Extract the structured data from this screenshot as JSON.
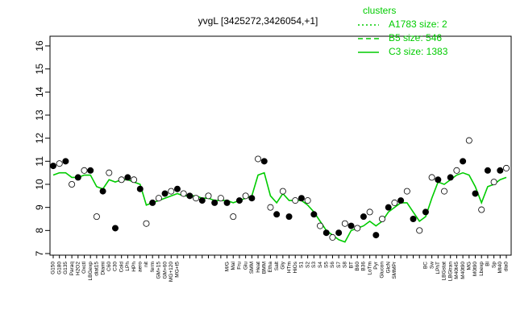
{
  "chart_data": {
    "type": "line",
    "title": "yvgL [3425272,3426054,+1]",
    "categories": [
      "G150",
      "G180",
      "G135",
      "Paraq",
      "H2O2",
      "Oxctl",
      "LBGexp",
      "diat15",
      "Diami",
      "C60",
      "C30",
      "Cold",
      "LPh",
      "HPh",
      "aero",
      "nit",
      "ferm",
      "GM+15",
      "GM+60",
      "MG+120",
      "MG+t5",
      null,
      null,
      null,
      null,
      null,
      null,
      null,
      "M/G",
      "Mal",
      "Fru",
      "Glu",
      "SMM",
      "Heat",
      "BMM",
      "Etha",
      "Salt",
      "Gly",
      "HTm",
      "HiOs",
      "S1",
      "S2",
      "S3",
      "S4",
      "S5",
      "S6",
      "S7",
      "S8",
      "BT",
      "B60",
      "B36",
      "LoTm",
      "Pyr",
      "Glucon",
      "GlcN",
      "SMMPr",
      null,
      null,
      null,
      null,
      "BC",
      "Sw",
      "LPhT",
      "LBGstat",
      "LBGtran",
      "M40t45",
      "M40t90",
      "MG",
      "M0t90",
      "Lbexp",
      "Bl",
      "Sp",
      "Mt40",
      "dia0"
    ],
    "points": [
      10.8,
      10.9,
      11.0,
      10.0,
      10.3,
      10.6,
      10.6,
      8.6,
      9.7,
      10.5,
      8.1,
      10.2,
      10.3,
      10.2,
      9.8,
      8.3,
      9.2,
      9.4,
      9.6,
      9.7,
      9.8,
      9.6,
      9.5,
      9.4,
      9.3,
      9.5,
      9.2,
      9.4,
      9.2,
      8.6,
      9.3,
      9.5,
      9.4,
      11.1,
      11.0,
      9.0,
      8.7,
      9.7,
      8.6,
      9.3,
      9.4,
      9.3,
      8.7,
      8.2,
      7.9,
      7.7,
      7.9,
      8.3,
      8.2,
      8.1,
      8.6,
      8.8,
      7.8,
      8.5,
      9.0,
      9.2,
      9.3,
      9.7,
      8.5,
      8.0,
      8.8,
      10.3,
      10.2,
      9.7,
      10.3,
      10.6,
      11.0,
      11.9,
      9.6,
      8.9,
      10.6,
      10.1,
      10.6,
      10.7
    ],
    "series": [
      {
        "name": "C3 size: 1383",
        "color": "#00cc00",
        "values": [
          10.4,
          10.5,
          10.5,
          10.3,
          10.3,
          10.4,
          10.4,
          9.9,
          9.8,
          10.2,
          10.1,
          10.2,
          10.2,
          10.1,
          10.0,
          9.1,
          9.2,
          9.3,
          9.4,
          9.5,
          9.6,
          9.5,
          9.5,
          9.5,
          9.4,
          9.4,
          9.3,
          9.3,
          9.3,
          9.2,
          9.3,
          9.4,
          9.5,
          10.4,
          10.5,
          9.5,
          9.2,
          9.6,
          9.3,
          9.3,
          9.3,
          9.1,
          8.8,
          8.4,
          8.0,
          7.8,
          7.6,
          7.5,
          8.0,
          8.1,
          8.2,
          8.4,
          8.2,
          8.4,
          8.8,
          9.0,
          9.2,
          9.2,
          8.8,
          8.4,
          8.6,
          9.4,
          10.1,
          10.0,
          10.2,
          10.4,
          10.5,
          10.4,
          9.9,
          9.2,
          9.9,
          10.0,
          10.2,
          10.3
        ]
      }
    ],
    "legend": {
      "title": "clusters",
      "entries": [
        {
          "label": "A1783 size: 2",
          "dash": "2,3"
        },
        {
          "label": "B5 size: 546",
          "dash": "6,4"
        },
        {
          "label": "C3 size: 1383",
          "dash": "none"
        }
      ]
    },
    "ylim": [
      7,
      16
    ],
    "yticks": [
      7,
      8,
      9,
      10,
      11,
      12,
      13,
      14,
      15,
      16
    ]
  }
}
